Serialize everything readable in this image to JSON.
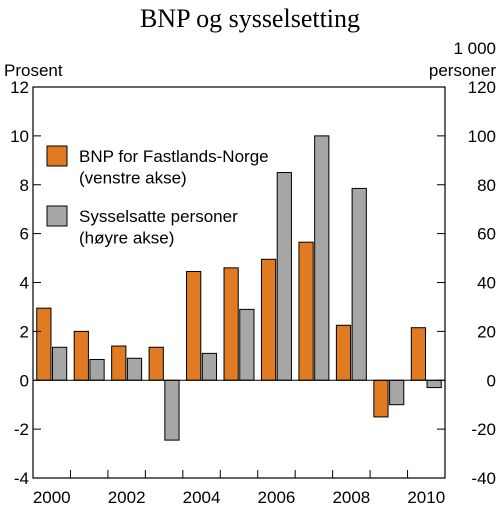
{
  "chart_data": {
    "type": "bar",
    "title": "BNP og sysselsetting",
    "ylabel_left": "Prosent",
    "ylabel_right": [
      "1 000",
      "personer"
    ],
    "ylim_left": [
      -4,
      12
    ],
    "ylim_right": [
      -40,
      120
    ],
    "yticks_left": [
      "-4",
      "-2",
      "0",
      "2",
      "4",
      "6",
      "8",
      "10",
      "12"
    ],
    "yticks_right": [
      "-40",
      "-20",
      "0",
      "20",
      "40",
      "60",
      "80",
      "100",
      "120"
    ],
    "years": [
      2000,
      2001,
      2002,
      2003,
      2004,
      2005,
      2006,
      2007,
      2008,
      2009,
      2010
    ],
    "xtick_labels": [
      "2000",
      "2002",
      "2004",
      "2006",
      "2008",
      "2010"
    ],
    "grid": false,
    "legend_position": "top-left",
    "series": [
      {
        "name": "BNP for Fastlands-Norge (venstre akse)",
        "legend_lines": [
          "BNP for Fastlands-Norge",
          "(venstre akse)"
        ],
        "axis": "left",
        "color": "#E07B24",
        "values": [
          2.95,
          2.0,
          1.4,
          1.35,
          4.45,
          4.6,
          4.95,
          5.65,
          2.25,
          -1.5,
          2.15
        ]
      },
      {
        "name": "Sysselsatte personer (høyre akse)",
        "legend_lines": [
          "Sysselsatte personer",
          "(høyre akse)"
        ],
        "axis": "right",
        "color": "#A6A6A6",
        "values": [
          13.5,
          8.5,
          9.0,
          -24.5,
          11.0,
          29.0,
          85.0,
          100.0,
          78.5,
          -10.0,
          -3.0
        ]
      }
    ]
  }
}
